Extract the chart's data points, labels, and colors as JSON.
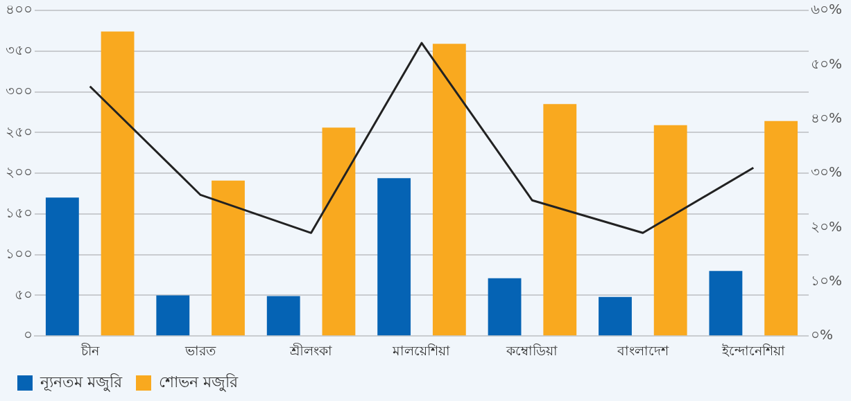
{
  "chart_data": {
    "type": "bar",
    "categories": [
      "চীন",
      "ভারত",
      "শ্রীলংকা",
      "মালয়েশিয়া",
      "কম্বোডিয়া",
      "বাংলাদেশ",
      "ইন্দোনেশিয়া"
    ],
    "series": [
      {
        "name": "ন্যূনতম মজুরি",
        "color": "#0563b4",
        "values": [
          170,
          50,
          49,
          194,
          71,
          48,
          80
        ]
      },
      {
        "name": "শোভন মজুরি",
        "color": "#f9a91f",
        "values": [
          374,
          191,
          256,
          359,
          285,
          259,
          264
        ]
      },
      {
        "type": "line",
        "axis": "y2",
        "color": "#222222",
        "values": [
          46,
          26,
          19,
          54,
          25,
          19,
          31
        ]
      }
    ],
    "ylim": [
      0,
      400
    ],
    "yticks": [
      {
        "value": 0,
        "label": "০"
      },
      {
        "value": 50,
        "label": "৫০"
      },
      {
        "value": 100,
        "label": "১০০"
      },
      {
        "value": 150,
        "label": "১৫০"
      },
      {
        "value": 200,
        "label": "২০০"
      },
      {
        "value": 250,
        "label": "২৫০"
      },
      {
        "value": 300,
        "label": "৩০০"
      },
      {
        "value": 350,
        "label": "৩৫০"
      },
      {
        "value": 400,
        "label": "৪০০"
      }
    ],
    "y2lim": [
      0,
      60
    ],
    "y2ticks": [
      {
        "value": 0,
        "label": "০%"
      },
      {
        "value": 10,
        "label": "১০%"
      },
      {
        "value": 20,
        "label": "২০%"
      },
      {
        "value": 30,
        "label": "৩০%"
      },
      {
        "value": 40,
        "label": "৪০%"
      },
      {
        "value": 50,
        "label": "৫০%"
      },
      {
        "value": 60,
        "label": "৬০%"
      }
    ],
    "grid": "y",
    "legend": "bottom left",
    "marker": "none",
    "line_style": "solid"
  }
}
